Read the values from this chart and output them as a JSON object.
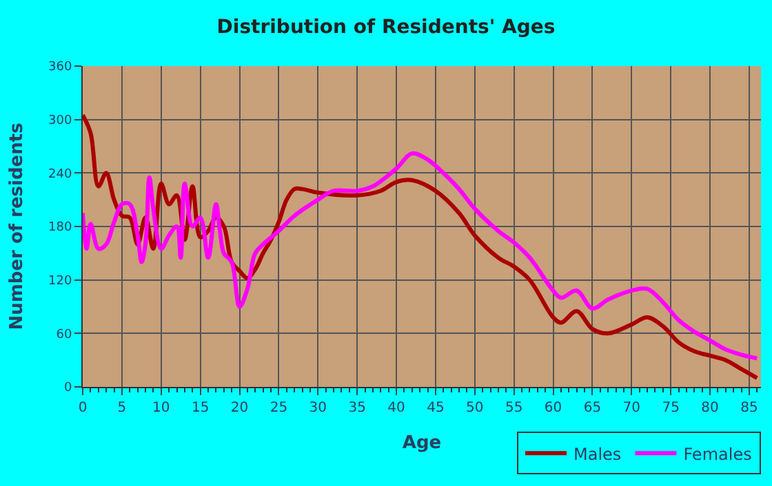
{
  "chart_data": {
    "type": "line",
    "title": "Distribution of Residents' Ages",
    "xlabel": "Age",
    "ylabel": "Number of residents",
    "series": [
      {
        "name": "Males",
        "color": "#aa0000",
        "x": [
          0,
          1,
          2,
          3,
          4,
          5,
          6,
          7,
          8,
          9,
          10,
          11,
          12,
          13,
          14,
          15,
          16,
          17,
          18,
          19,
          20,
          21,
          22,
          23,
          24,
          25,
          26,
          27,
          28,
          30,
          35,
          38,
          40,
          42,
          45,
          48,
          50,
          53,
          55,
          57,
          60,
          61,
          63,
          65,
          67,
          70,
          72,
          74,
          76,
          78,
          80,
          82,
          84,
          86
        ],
        "values": [
          305,
          285,
          225,
          240,
          210,
          192,
          190,
          160,
          190,
          155,
          228,
          205,
          215,
          165,
          225,
          168,
          175,
          190,
          180,
          140,
          130,
          122,
          132,
          150,
          165,
          185,
          210,
          222,
          222,
          218,
          215,
          220,
          230,
          232,
          220,
          195,
          170,
          145,
          135,
          120,
          78,
          72,
          85,
          65,
          60,
          70,
          78,
          68,
          50,
          40,
          35,
          30,
          20,
          10
        ]
      },
      {
        "name": "Females",
        "color": "#ff00ff",
        "x": [
          0,
          0.5,
          1,
          2,
          3,
          4,
          5,
          6,
          7,
          7.5,
          8,
          8.5,
          9,
          10,
          11,
          12,
          12.5,
          13,
          14,
          15,
          16,
          17,
          17.5,
          18,
          19,
          20,
          21,
          22,
          23,
          25,
          27,
          30,
          32,
          35,
          37,
          40,
          42,
          44,
          46,
          48,
          50,
          53,
          55,
          57,
          60,
          61,
          63,
          65,
          67,
          70,
          72,
          74,
          76,
          78,
          80,
          82,
          84,
          86
        ],
        "values": [
          195,
          155,
          183,
          155,
          160,
          185,
          205,
          205,
          170,
          140,
          160,
          235,
          200,
          155,
          170,
          180,
          145,
          228,
          180,
          190,
          145,
          205,
          175,
          150,
          140,
          90,
          110,
          150,
          160,
          175,
          192,
          210,
          220,
          220,
          225,
          245,
          262,
          255,
          240,
          222,
          200,
          175,
          162,
          145,
          108,
          100,
          108,
          88,
          98,
          108,
          110,
          95,
          75,
          62,
          52,
          42,
          36,
          32
        ]
      }
    ],
    "xlim": [
      0,
      86.5
    ],
    "xticks": [
      0,
      5,
      10,
      15,
      20,
      25,
      30,
      35,
      40,
      45,
      50,
      55,
      60,
      65,
      70,
      75,
      80,
      85
    ],
    "ylim": [
      0,
      360
    ],
    "yticks": [
      0,
      60,
      120,
      180,
      240,
      300,
      360
    ],
    "grid": true,
    "legend": "bottom right",
    "marker": "none",
    "line_style": "solid"
  }
}
